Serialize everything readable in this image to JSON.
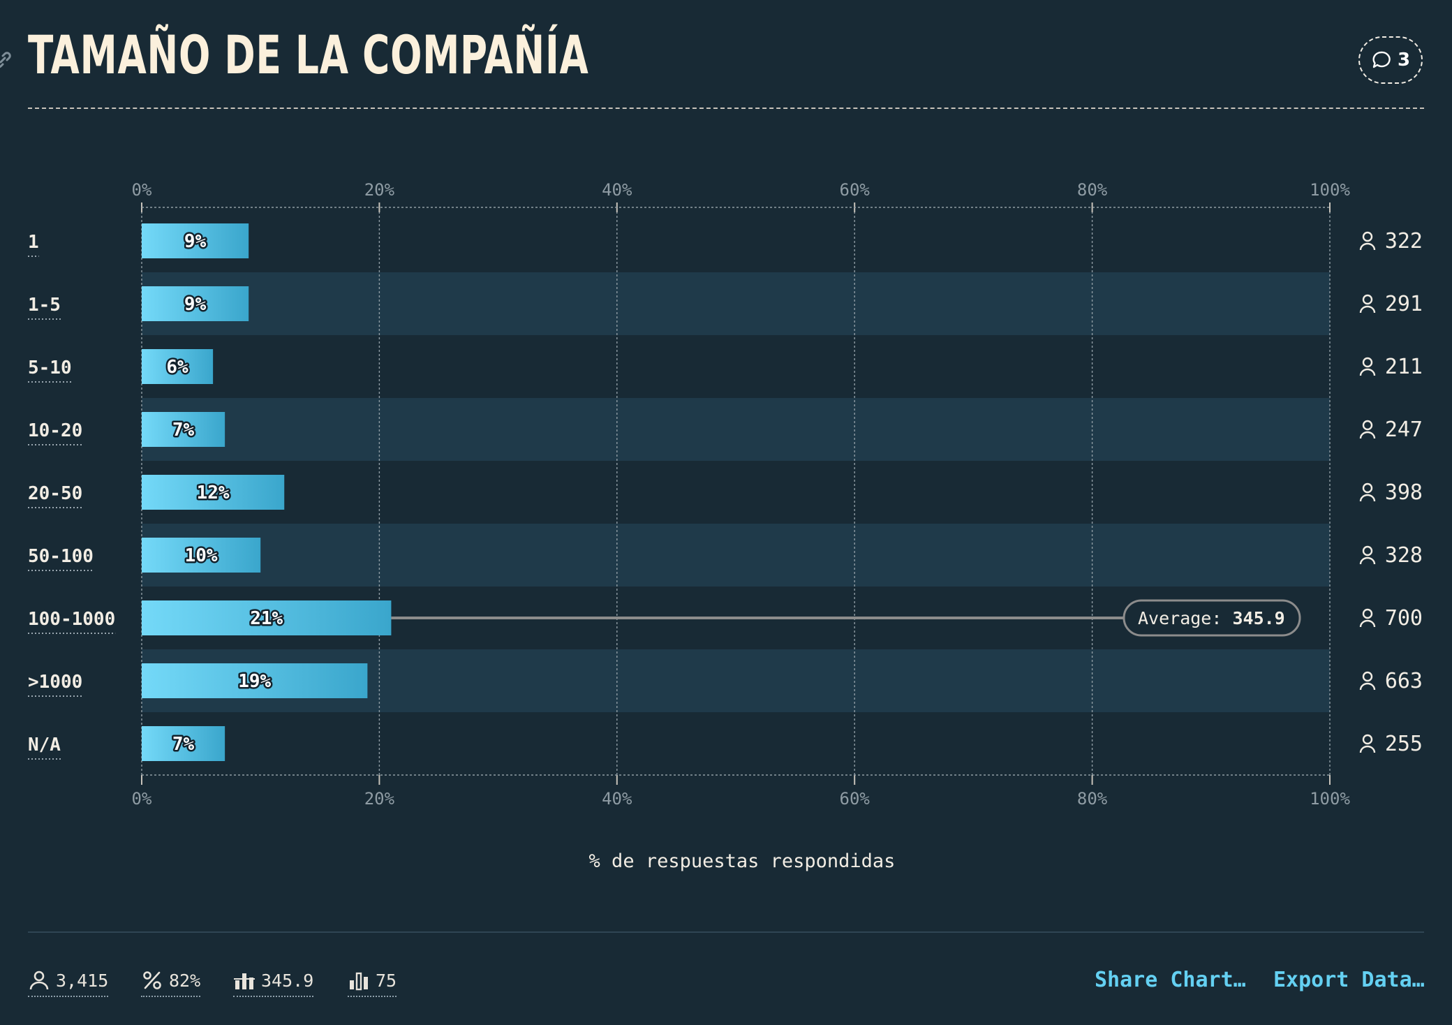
{
  "header": {
    "title": "TAMAÑO DE LA COMPAÑÍA",
    "comment_count": "3"
  },
  "chart_data": {
    "type": "bar",
    "orientation": "horizontal",
    "categories": [
      "1",
      "1-5",
      "5-10",
      "10-20",
      "20-50",
      "50-100",
      "100-1000",
      ">1000",
      "N/A"
    ],
    "values": [
      9,
      9,
      6,
      7,
      12,
      10,
      21,
      19,
      7
    ],
    "value_labels": [
      "9%",
      "9%",
      "6%",
      "7%",
      "12%",
      "10%",
      "21%",
      "19%",
      "7%"
    ],
    "counts": [
      "322",
      "291",
      "211",
      "247",
      "398",
      "328",
      "700",
      "663",
      "255"
    ],
    "xlim": [
      0,
      100
    ],
    "x_ticks": [
      "0%",
      "20%",
      "40%",
      "60%",
      "80%",
      "100%"
    ],
    "xlabel": "% de respuestas respondidas",
    "grid": true,
    "average": {
      "label": "Average:",
      "value": "345.9",
      "row": "100-1000"
    },
    "colors": {
      "bar_start": "#74d9f8",
      "bar_end": "#3aa6cc",
      "band": "#1f3a4a",
      "background": "#182a35"
    }
  },
  "footer": {
    "stats": [
      {
        "icon": "user-icon",
        "value": "3,415"
      },
      {
        "icon": "percent-icon",
        "value": "82%"
      },
      {
        "icon": "average-bars-icon",
        "value": "345.9"
      },
      {
        "icon": "bars-icon",
        "value": "75"
      }
    ],
    "share_label": "Share Chart…",
    "export_label": "Export Data…"
  }
}
